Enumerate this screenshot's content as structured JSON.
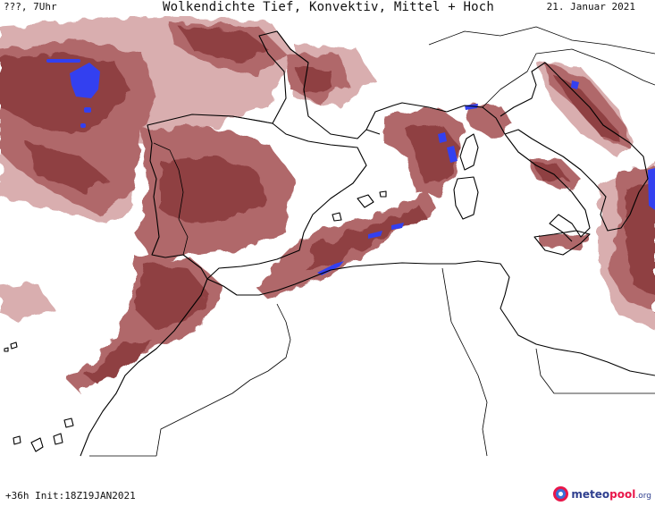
{
  "header": {
    "valid_time": "???, 7Uhr",
    "title": "Wolkendichte  Tief, Konvektiv, Mittel + Hoch",
    "date": "21. Januar 2021"
  },
  "footer": {
    "run_info": "+36h Init:18Z19JAN2021"
  },
  "logo": {
    "part1": "meteo",
    "part2": "pool",
    "part3": ".org"
  },
  "colors": {
    "cloud_dense": "#8f3f43",
    "cloud_medium": "#b0686b",
    "cloud_light": "#d7aaab",
    "precip": "#3340f0",
    "coastline": "#000000",
    "background": "#ffffff"
  }
}
